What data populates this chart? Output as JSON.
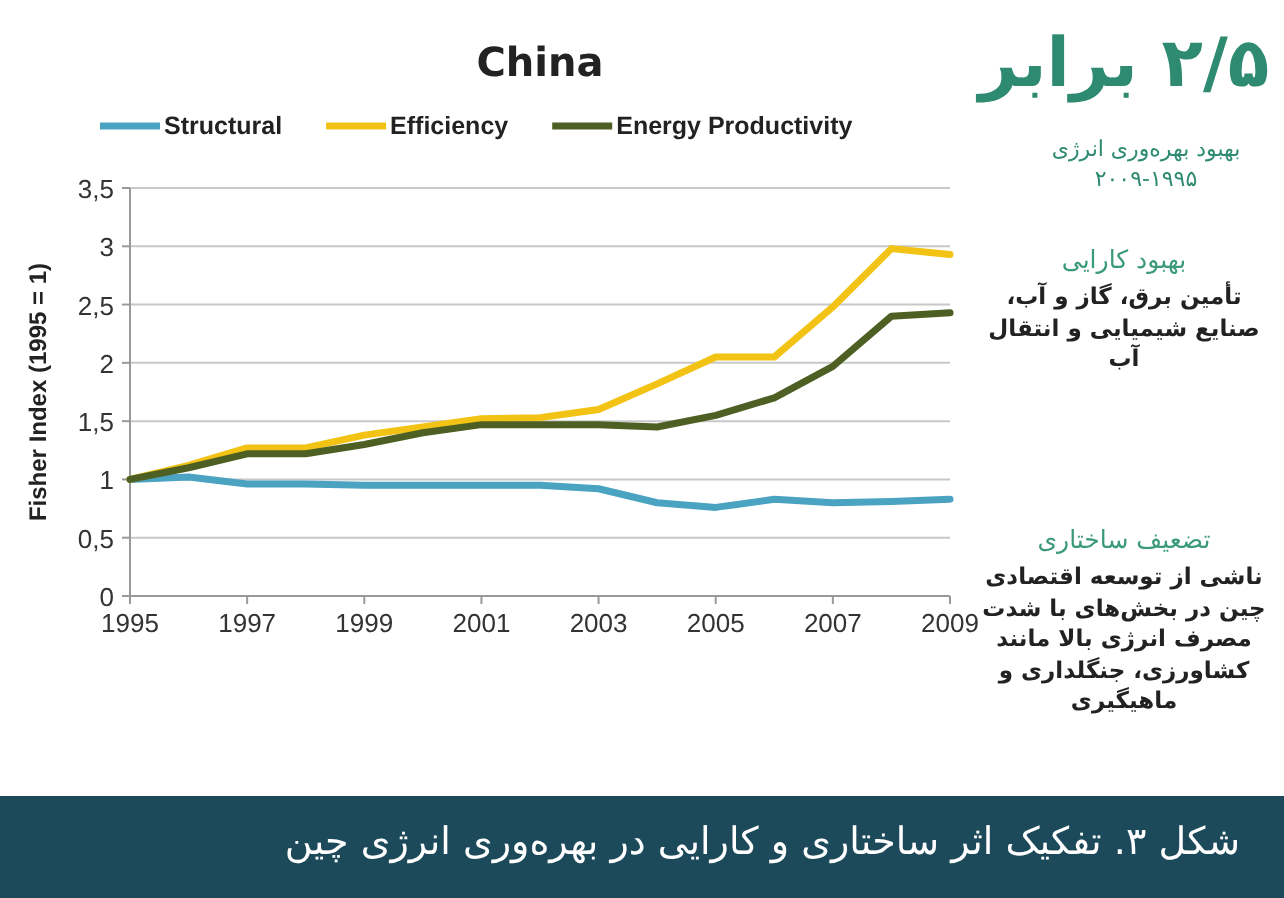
{
  "chart_data": {
    "type": "line",
    "title": "China",
    "ylabel": "Fisher Index (1995 = 1)",
    "x": [
      1995,
      1996,
      1997,
      1998,
      1999,
      2000,
      2001,
      2002,
      2003,
      2004,
      2005,
      2006,
      2007,
      2008,
      2009
    ],
    "series": [
      {
        "name": "Structural",
        "color": "#4aa3c0",
        "values": [
          1,
          1.02,
          0.96,
          0.96,
          0.95,
          0.95,
          0.95,
          0.95,
          0.92,
          0.8,
          0.76,
          0.83,
          0.8,
          0.81,
          0.83
        ]
      },
      {
        "name": "Efficiency",
        "color": "#f2c314",
        "values": [
          1,
          1.12,
          1.27,
          1.27,
          1.38,
          1.45,
          1.52,
          1.53,
          1.6,
          1.82,
          2.05,
          2.05,
          2.48,
          2.98,
          2.93
        ]
      },
      {
        "name": "Energy Productivity",
        "color": "#4e5f23",
        "values": [
          1,
          1.1,
          1.22,
          1.22,
          1.3,
          1.4,
          1.47,
          1.47,
          1.47,
          1.45,
          1.55,
          1.7,
          1.97,
          2.4,
          2.43
        ]
      }
    ],
    "xlim": [
      1995,
      2009
    ],
    "xticks": [
      1995,
      1997,
      1999,
      2001,
      2003,
      2005,
      2007,
      2009
    ],
    "ylim": [
      0,
      3.5
    ],
    "yticks": [
      0,
      {
        "value": 0.5,
        "label": "0,5"
      },
      1,
      {
        "value": 1.5,
        "label": "1,5"
      },
      2,
      {
        "value": 2.5,
        "label": "2,5"
      },
      3,
      {
        "value": 3.5,
        "label": "3,5"
      }
    ],
    "grid": "y",
    "legend": "top",
    "marker": "none",
    "line_style": "solid",
    "annotations": [
      "۲/۵ برابر",
      "بهبود بهره‌وری انرژی ۱۹۹۵-۲۰۰۹",
      "بهبود کارایی",
      "تأمین برق، گاز و آب، صنایع شیمیایی و انتقال آب",
      "تضعیف ساختاری",
      "ناشی از توسعه اقتصادی چین در بخش‌های با شدت مصرف انرژی بالا مانند کشاورزی، جنگلداری و ماهیگیری",
      "شکل ۳. تفکیک اثر ساختاری و کارایی در بهره‌وری انرژی چین"
    ]
  }
}
